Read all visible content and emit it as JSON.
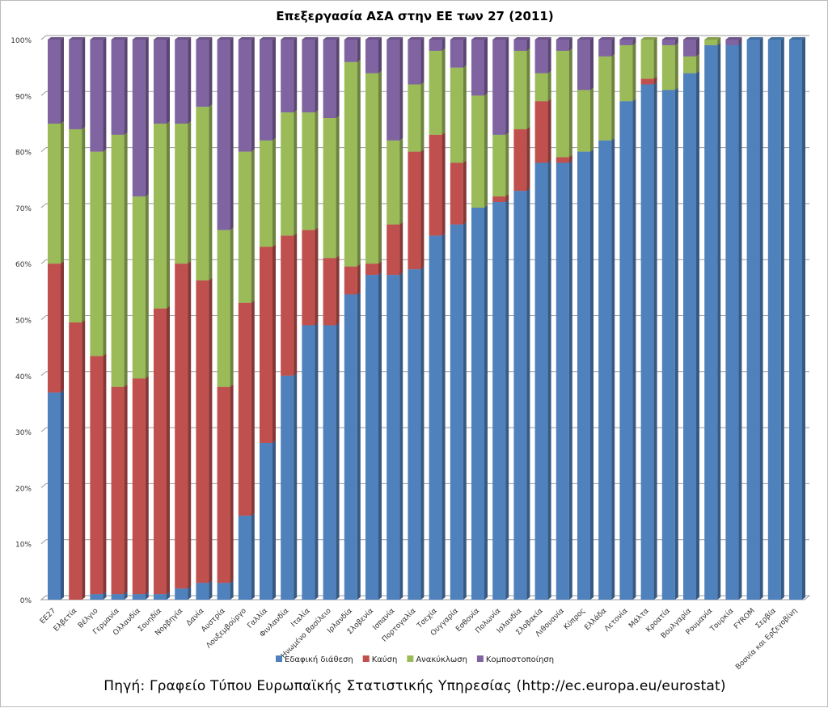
{
  "chart_data": {
    "type": "bar",
    "stacked": "percent",
    "title": "Επεξεργασία ΑΣΑ στην ΕΕ των 27 (2011)",
    "source": "Πηγή: Γραφείο Τύπου Ευρωπαϊκής Στατιστικής Υπηρεσίας (http://ec.europa.eu/eurostat)",
    "ylim": [
      0,
      100
    ],
    "yticks": [
      "0%",
      "10%",
      "20%",
      "30%",
      "40%",
      "50%",
      "60%",
      "70%",
      "80%",
      "90%",
      "100%"
    ],
    "grid": true,
    "legend_position": "bottom",
    "categories": [
      "ΕΕ27",
      "Ελβετία",
      "Βέλγιο",
      "Γερμανία",
      "Ολλανδία",
      "Σουηδία",
      "Νορβηγία",
      "Δανία",
      "Αυστρία",
      "Λουξεμβούργο",
      "Γαλλία",
      "Φινλανδία",
      "Ιταλία",
      "Ηνωμένο Βασίλειο",
      "Ιρλανδία",
      "Σλοβενία",
      "Ισπανία",
      "Πορτογαλία",
      "Τσεχία",
      "Ουγγαρία",
      "Εσθονία",
      "Πολωνία",
      "Ισλανδία",
      "Σλοβακία",
      "Λιθουανία",
      "Κύπρος",
      "Ελλάδα",
      "Λετονία",
      "Μάλτα",
      "Κροατία",
      "Βουλγαρία",
      "Ρουμανία",
      "Τουρκία",
      "FYROM",
      "Σερβία",
      "Βοσνία και Ερζεγοβίνη"
    ],
    "series": [
      {
        "name": "Εδαφική διάθεση",
        "color": "#4F81BD",
        "values": [
          37,
          0,
          1,
          1,
          1,
          1,
          2,
          3,
          3,
          15,
          28,
          40,
          49,
          49,
          54.5,
          58,
          58,
          59,
          65,
          67,
          70,
          71,
          73,
          78,
          78,
          80,
          82,
          89,
          92,
          91,
          94,
          99,
          99,
          100,
          100,
          100
        ]
      },
      {
        "name": "Καύση",
        "color": "#C0504D",
        "values": [
          23,
          49.5,
          42.5,
          37,
          38.5,
          51,
          58,
          54,
          35,
          38,
          35,
          25,
          17,
          12,
          5,
          2,
          9,
          21,
          18,
          11,
          0,
          1,
          11,
          11,
          1,
          0,
          0,
          0,
          1,
          0,
          0,
          0,
          0,
          0,
          0,
          0
        ]
      },
      {
        "name": "Ανακύκλωση",
        "color": "#9BBB59",
        "values": [
          25,
          34.5,
          36.5,
          45,
          32.5,
          33,
          25,
          31,
          28,
          27,
          19,
          22,
          21,
          25,
          36.5,
          34,
          15,
          12,
          15,
          17,
          20,
          11,
          14,
          5,
          19,
          11,
          15,
          10,
          7,
          8,
          3,
          1,
          0,
          0,
          0,
          0
        ]
      },
      {
        "name": "Κομποστοποίηση",
        "color": "#8064A2",
        "values": [
          15,
          16,
          20,
          17,
          28,
          15,
          15,
          12,
          34,
          20,
          18,
          13,
          13,
          14,
          4,
          6,
          18,
          8,
          2,
          5,
          10,
          17,
          2,
          6,
          2,
          9,
          3,
          1,
          0,
          1,
          3,
          0,
          1,
          0,
          0,
          0
        ]
      }
    ]
  }
}
